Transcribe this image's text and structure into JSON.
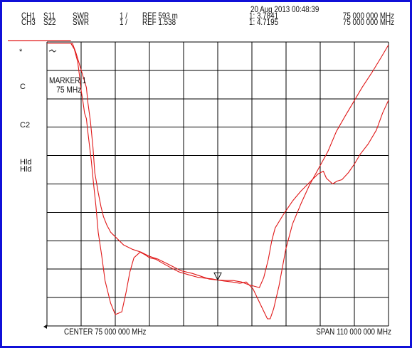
{
  "header": {
    "ch1_label": "CH1",
    "ch3_label": "CH3",
    "ch1_param": "S11",
    "ch3_param": "S22",
    "ch1_format": "SWR",
    "ch3_format": "SWR",
    "ch1_scale": "1 /",
    "ch3_scale": "1 /",
    "ch1_ref": "REF 593 m",
    "ch3_ref": "REF 1.538",
    "datetime": "20 Aug 2013  00:48:39",
    "marker_ch1_value": "1: 3.7841",
    "marker_ch3_value": "1: 4.7195",
    "marker_ch1_freq": "75 000 000 MHz",
    "marker_ch3_freq": "75 000 000 MHz"
  },
  "side_labels": {
    "star": "*",
    "c": "C",
    "c2": "C2",
    "hld": "Hld"
  },
  "marker_box": {
    "title": "MARKER 1",
    "freq": "75 MHz"
  },
  "footer": {
    "center": "CENTER 75 000 000 MHz",
    "span": "SPAN 110 000 000 MHz"
  },
  "colors": {
    "trace": "#e01818",
    "grid": "#000000",
    "border": "#1010d8"
  },
  "chart_data": {
    "type": "line",
    "title": "",
    "xlabel": "",
    "ylabel": "",
    "x_unit": "MHz",
    "xlim": [
      20,
      130
    ],
    "ylim": [
      0,
      10
    ],
    "grid": true,
    "divisions": {
      "x": 10,
      "y": 10
    },
    "marker": {
      "x": 75
    },
    "series": [
      {
        "x": [
          20,
          27.7,
          28.8,
          29.9,
          30.5,
          31.0,
          31.6,
          32.1,
          32.7,
          33.2,
          34.3,
          35.0,
          35.8,
          36.5,
          37.6,
          38.7,
          40.5,
          42.0,
          44.1,
          45.5,
          46.7,
          48.0,
          50.0,
          51.7,
          53.0,
          55.0,
          57.4,
          59.9,
          62.6,
          65.7,
          68.4,
          71.0,
          73.1,
          75.0,
          77.1,
          79.6,
          82.1,
          84.2,
          86.4,
          88.8,
          91.0,
          91.9,
          93.0,
          94.7,
          96.9,
          99.1,
          101.8,
          104.5,
          107.5,
          110.5,
          113.2,
          116.1,
          118.8,
          121.5,
          124.8,
          127.6,
          130
        ],
        "y": [
          9.95,
          9.95,
          9.75,
          9.3,
          8.8,
          8.3,
          7.9,
          7.5,
          7.3,
          6.8,
          5.8,
          5.0,
          4.2,
          3.3,
          2.5,
          1.6,
          0.8,
          0.4,
          0.5,
          1.2,
          1.9,
          2.4,
          2.6,
          2.5,
          2.4,
          2.35,
          2.2,
          2.05,
          1.9,
          1.8,
          1.72,
          1.68,
          1.66,
          1.62,
          1.58,
          1.55,
          1.5,
          1.55,
          1.3,
          0.75,
          0.25,
          0.25,
          0.6,
          1.4,
          2.7,
          3.6,
          4.3,
          4.95,
          5.55,
          6.15,
          6.85,
          7.4,
          7.9,
          8.4,
          8.95,
          9.45,
          9.9
        ]
      },
      {
        "x": [
          20,
          28.2,
          29.4,
          30.5,
          31.6,
          32.7,
          33.2,
          34.0,
          34.8,
          35.4,
          36.5,
          37.4,
          38.2,
          39.3,
          40.5,
          41.9,
          44.7,
          47.5,
          50.3,
          53.0,
          55.8,
          58.6,
          61.3,
          63.0,
          66.8,
          69.6,
          72.3,
          75.0,
          77.4,
          80.0,
          82.6,
          85.0,
          86.7,
          88.4,
          89.8,
          91.3,
          92.4,
          93.5,
          96.3,
          99.1,
          101.8,
          104.5,
          107.3,
          109.0,
          110.0,
          112.0,
          113.4,
          115.0,
          117.1,
          119.0,
          120.9,
          123.4,
          126.1,
          128.1,
          130
        ],
        "y": [
          9.95,
          9.95,
          9.6,
          9.2,
          8.8,
          8.4,
          7.85,
          7.2,
          6.3,
          5.4,
          4.7,
          4.2,
          3.85,
          3.55,
          3.3,
          3.15,
          2.85,
          2.7,
          2.6,
          2.45,
          2.35,
          2.2,
          2.05,
          1.95,
          1.85,
          1.75,
          1.65,
          1.62,
          1.6,
          1.6,
          1.55,
          1.45,
          1.4,
          1.35,
          1.7,
          2.35,
          3.0,
          3.45,
          3.95,
          4.4,
          4.75,
          5.05,
          5.35,
          5.45,
          5.2,
          5.0,
          5.1,
          5.15,
          5.4,
          5.7,
          6.05,
          6.4,
          6.9,
          7.5,
          7.95
        ]
      }
    ]
  }
}
